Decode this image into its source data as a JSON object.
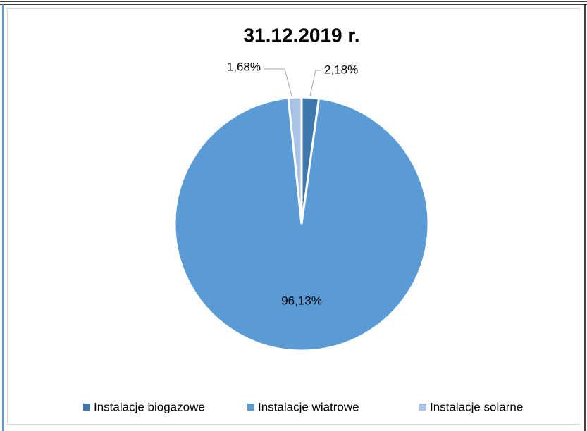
{
  "chart_data": {
    "type": "pie",
    "title": "31.12.2019 r.",
    "categories": [
      "Instalacje biogazowe",
      "Instalacje wiatrowe",
      "Instalacje solarne"
    ],
    "values": [
      2.18,
      96.13,
      1.68
    ],
    "value_labels": [
      "2,18%",
      "96,13%",
      "1,68%"
    ],
    "colors": [
      "#3f78ae",
      "#5b9bd5",
      "#a9c3e6"
    ],
    "legend": "bottom"
  }
}
